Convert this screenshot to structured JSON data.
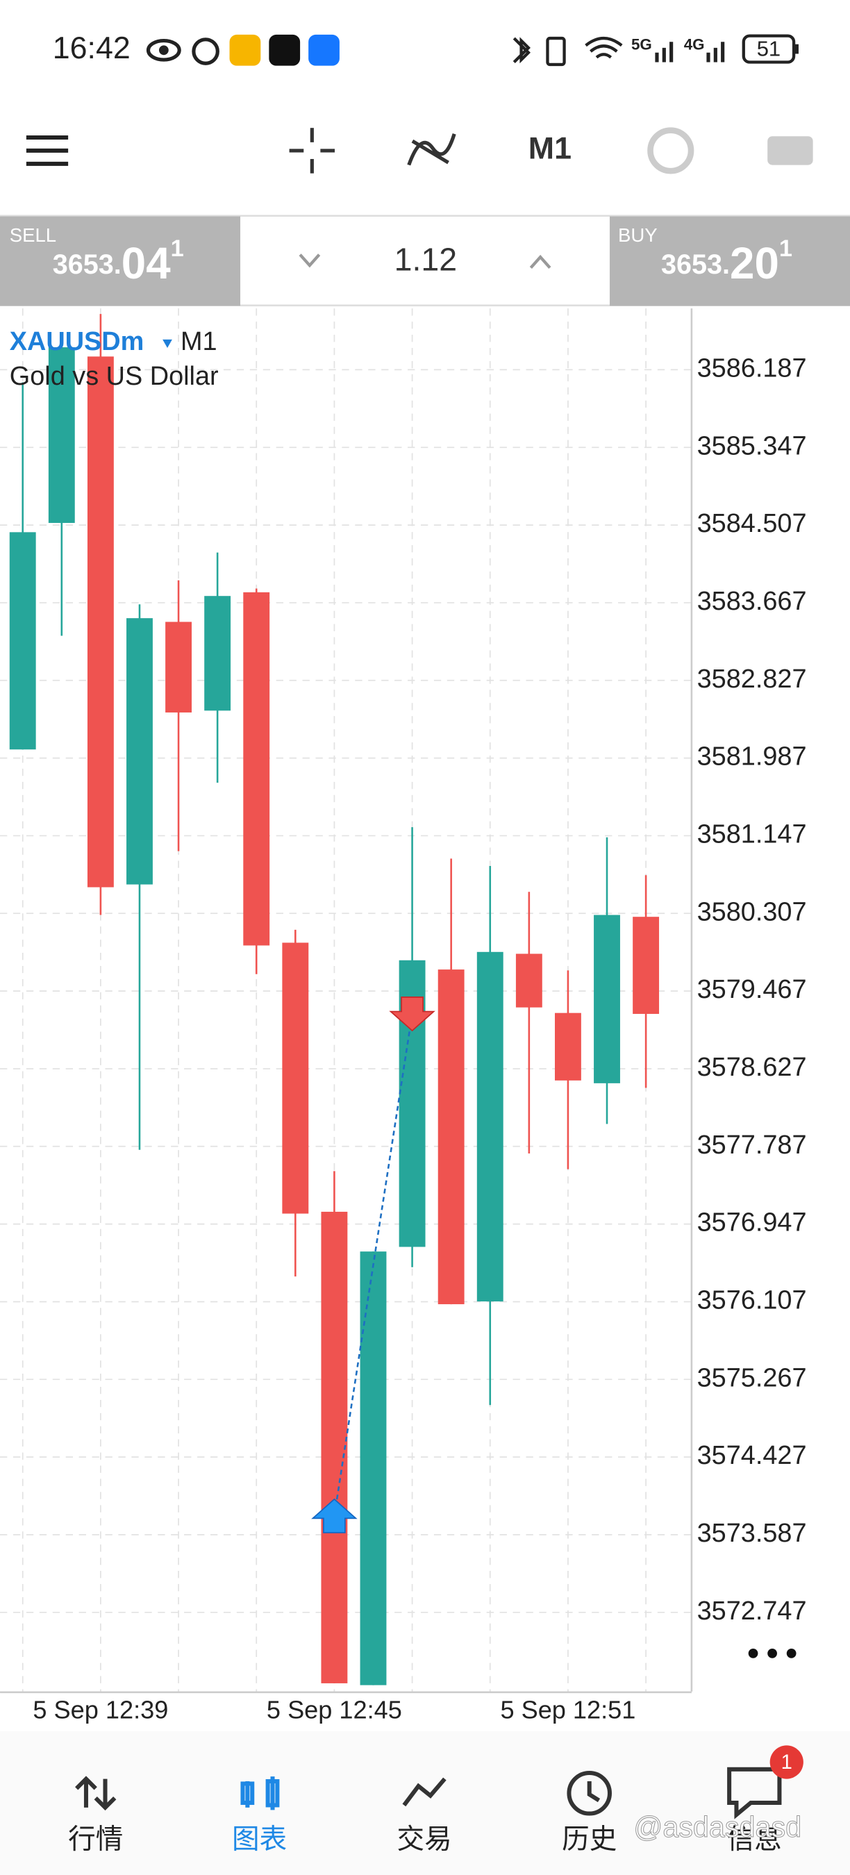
{
  "status_bar": {
    "time": "16:42",
    "net1": "5G",
    "net2": "4G",
    "battery": "51"
  },
  "toolbar": {
    "timeframe": "M1"
  },
  "trade_bar": {
    "sell": {
      "label": "SELL",
      "price": "3653.",
      "pips": "04",
      "point": "1"
    },
    "volume": "1.12",
    "buy": {
      "label": "BUY",
      "price": "3653.",
      "pips": "20",
      "point": "1"
    }
  },
  "symbol": {
    "name": "XAUUSDm",
    "timeframe": "M1",
    "description": "Gold vs US Dollar"
  },
  "chart_data": {
    "type": "candlestick",
    "categories": [
      null,
      null,
      "5 Sep 12:39",
      null,
      null,
      null,
      null,
      null,
      "5 Sep 12:45",
      null,
      null,
      null,
      null,
      null,
      "5 Sep 12:51",
      null,
      null
    ],
    "open": [
      3582.08,
      3584.53,
      3586.33,
      3580.62,
      3583.46,
      3582.5,
      3583.78,
      3579.99,
      3577.08,
      3571.96,
      3576.7,
      3579.7,
      3576.11,
      3579.87,
      3579.23,
      3578.47,
      3580.27
    ],
    "high": [
      3586.05,
      3586.56,
      3586.79,
      3583.65,
      3583.91,
      3584.21,
      3583.82,
      3580.13,
      3577.52,
      3576.65,
      3581.24,
      3580.9,
      3580.82,
      3580.54,
      3579.69,
      3581.13,
      3580.72
    ],
    "low": [
      3582.08,
      3583.31,
      3580.29,
      3577.75,
      3580.98,
      3581.72,
      3579.65,
      3576.38,
      3571.98,
      3571.96,
      3576.48,
      3576.08,
      3574.99,
      3577.71,
      3577.54,
      3578.03,
      3578.42
    ],
    "close": [
      3584.43,
      3586.43,
      3580.59,
      3583.5,
      3582.48,
      3583.74,
      3579.96,
      3577.06,
      3571.98,
      3576.65,
      3579.8,
      3576.08,
      3579.89,
      3579.29,
      3578.5,
      3580.29,
      3579.22
    ],
    "up_color": "#26a69a",
    "down_color": "#ef5350",
    "ylim": [
      3571.89,
      3586.85
    ],
    "yticks": [
      3586.187,
      3585.347,
      3584.507,
      3583.667,
      3582.827,
      3581.987,
      3581.147,
      3580.307,
      3579.467,
      3578.627,
      3577.787,
      3576.947,
      3576.107,
      3575.267,
      3574.427,
      3573.587,
      3572.747
    ],
    "grid": true,
    "trade": {
      "open_price": 3573.79,
      "close_price": 3579.22
    }
  },
  "bottom_nav": {
    "items": [
      "行情",
      "图表",
      "交易",
      "历史",
      "信息"
    ],
    "active": 1,
    "badge": "1"
  },
  "watermark": "@asdasdasd"
}
